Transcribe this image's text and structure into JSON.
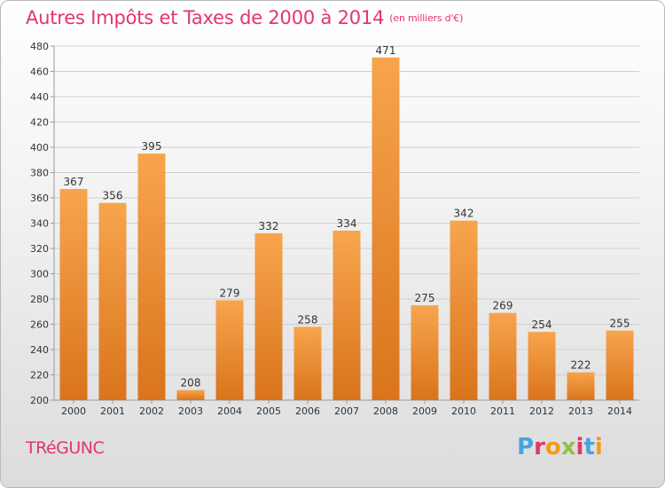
{
  "header": {
    "title": "Autres Impôts et Taxes de 2000 à 2014",
    "subtitle": "(en milliers d'€)"
  },
  "footer": {
    "place": "TRéGUNC",
    "brand": "Proxiti"
  },
  "colors": {
    "title": "#e2366a",
    "bar_light": "#f7a54d",
    "bar_dark": "#d9741c",
    "grid": "#d0d0d0"
  },
  "chart_data": {
    "type": "bar",
    "title": "Autres Impôts et Taxes de 2000 à 2014",
    "subtitle": "(en milliers d'€)",
    "categories": [
      "2000",
      "2001",
      "2002",
      "2003",
      "2004",
      "2005",
      "2006",
      "2007",
      "2008",
      "2009",
      "2010",
      "2011",
      "2012",
      "2013",
      "2014"
    ],
    "values": [
      367,
      356,
      395,
      208,
      279,
      332,
      258,
      334,
      471,
      275,
      342,
      269,
      254,
      222,
      255
    ],
    "ylim": [
      200,
      480
    ],
    "yticks": [
      200,
      220,
      240,
      260,
      280,
      300,
      320,
      340,
      360,
      380,
      400,
      420,
      440,
      460,
      480
    ],
    "xlabel": "",
    "ylabel": "",
    "grid": true,
    "data_labels": true
  }
}
